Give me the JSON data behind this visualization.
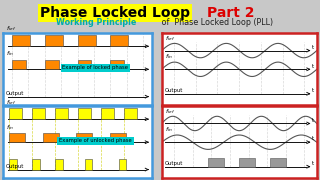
{
  "title1": "Phase Locked Loop",
  "title2": "Part 2",
  "subtitle_bold": "Working Principle",
  "subtitle_rest": " of  Phase Locked Loop (PLL)",
  "locked_label": "Example of locked phase",
  "unlocked_label": "Example of unlocked phase",
  "bg_color": "#c8c8c8",
  "title1_bg": "#ffff00",
  "title1_fg": "#000000",
  "title2_fg": "#dd0000",
  "subtitle_bold_color": "#00aaaa",
  "subtitle_rest_color": "#222222",
  "panel_left_border": "#4499dd",
  "panel_right_border": "#cc2222",
  "panel_bg": "#ffffff",
  "orange": "#ff8800",
  "yellow": "#ffff00",
  "label_bg": "#00cccc",
  "dark_line": "#111111",
  "sine_color": "#555555",
  "dashed_color": "#aaaaaa"
}
